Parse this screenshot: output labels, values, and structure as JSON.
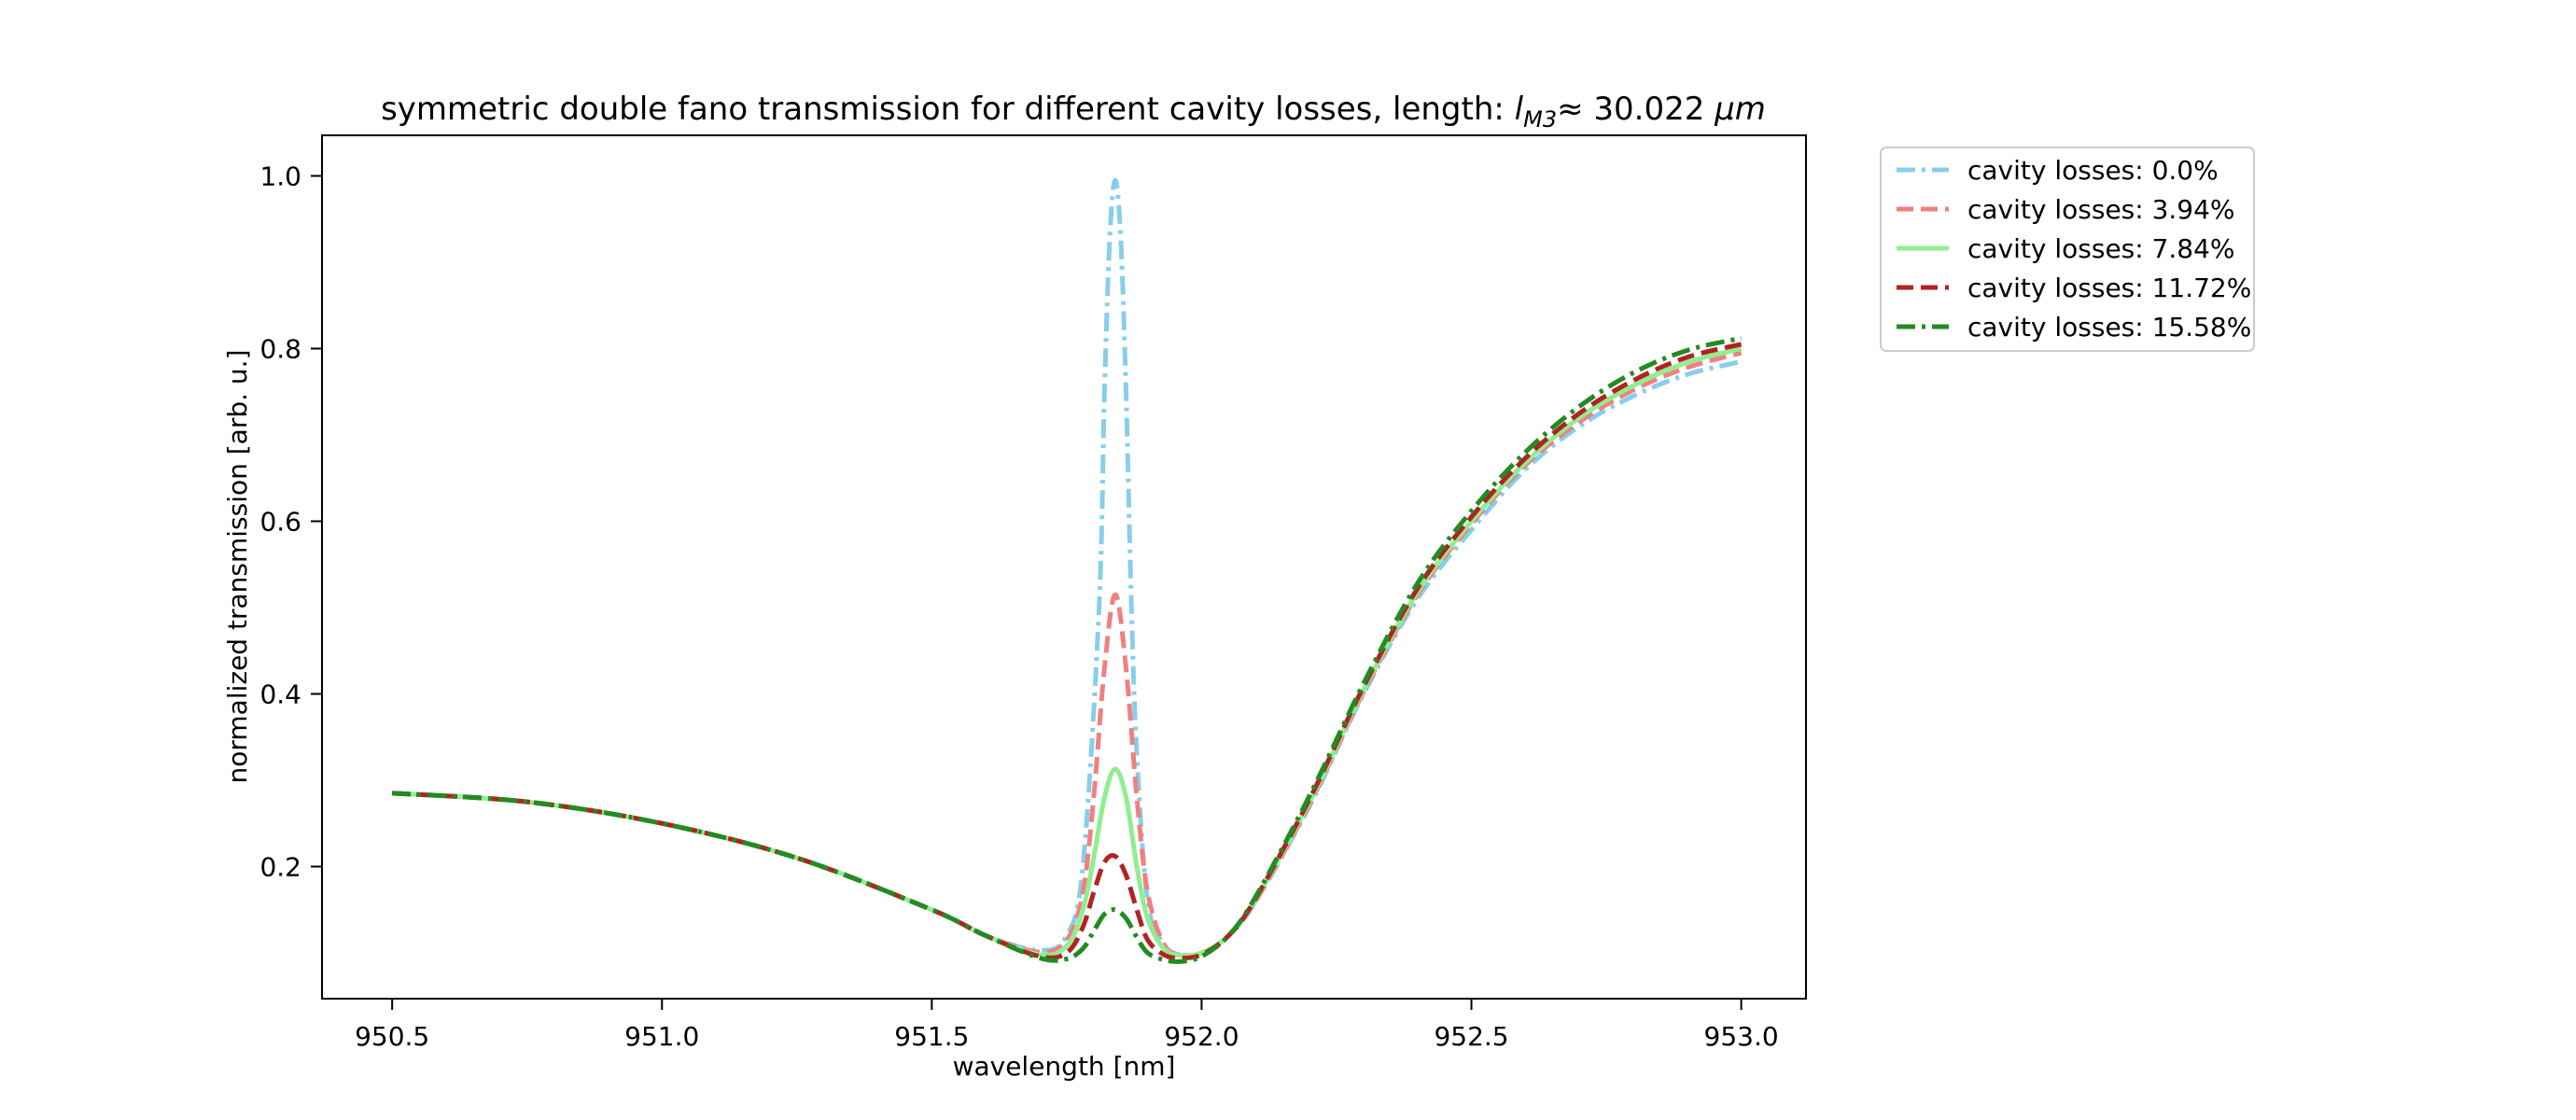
{
  "chart_data": {
    "type": "line",
    "title_prefix": "symmetric double fano transmission for different cavity losses, length: ",
    "title_symbol": "l",
    "title_subscript": "M3",
    "title_suffix": "≈  30.022 ",
    "title_unit": "μm",
    "xlabel": "wavelength [nm]",
    "ylabel": "normalized transmission [arb. u.]",
    "xlim": [
      950.37,
      953.12
    ],
    "ylim": [
      0.047,
      1.047
    ],
    "xticks": [
      950.5,
      951.0,
      951.5,
      952.0,
      952.5,
      953.0
    ],
    "xtick_labels": [
      "950.5",
      "951.0",
      "951.5",
      "952.0",
      "952.5",
      "953.0"
    ],
    "yticks": [
      0.2,
      0.4,
      0.6,
      0.8,
      1.0
    ],
    "ytick_labels": [
      "0.2",
      "0.4",
      "0.6",
      "0.8",
      "1.0"
    ],
    "grid": false,
    "legend_position": "outside upper right",
    "series": [
      {
        "name": "cavity losses: 0.0%",
        "color": "#87ceeb",
        "dash": "dashdot",
        "peak": 0.995,
        "near": 0.1,
        "far_right": 0.785,
        "left_x": [
          950.5,
          950.75,
          951.0,
          951.25,
          951.5,
          951.6,
          951.7,
          951.75,
          951.78,
          951.81,
          951.82,
          951.83,
          951.84
        ],
        "left_y": [
          0.285,
          0.275,
          0.25,
          0.21,
          0.15,
          0.12,
          0.103,
          0.12,
          0.2,
          0.5,
          0.75,
          0.93,
          0.995
        ],
        "right_x": [
          951.84,
          951.85,
          951.86,
          951.87,
          951.88,
          951.9,
          951.93,
          951.96,
          952.0,
          952.05,
          952.1,
          952.2,
          952.3,
          952.4,
          952.5,
          952.6,
          952.7,
          952.8,
          952.9,
          953.0
        ],
        "right_y": [
          0.995,
          0.93,
          0.75,
          0.5,
          0.33,
          0.16,
          0.11,
          0.098,
          0.1,
          0.12,
          0.16,
          0.27,
          0.4,
          0.51,
          0.59,
          0.66,
          0.71,
          0.745,
          0.77,
          0.785
        ]
      },
      {
        "name": "cavity losses: 3.94%",
        "color": "#f08080",
        "dash": "dashed",
        "peak": 0.515,
        "near": 0.098,
        "far_right": 0.795,
        "left_x": [
          950.5,
          950.75,
          951.0,
          951.25,
          951.5,
          951.6,
          951.7,
          951.75,
          951.78,
          951.8,
          951.82,
          951.84
        ],
        "left_y": [
          0.285,
          0.275,
          0.25,
          0.21,
          0.15,
          0.12,
          0.101,
          0.115,
          0.17,
          0.28,
          0.43,
          0.515
        ],
        "right_x": [
          951.84,
          951.86,
          951.88,
          951.9,
          951.93,
          951.96,
          952.0,
          952.05,
          952.1,
          952.2,
          952.3,
          952.4,
          952.5,
          952.6,
          952.7,
          952.8,
          952.9,
          953.0
        ],
        "right_y": [
          0.515,
          0.43,
          0.28,
          0.17,
          0.11,
          0.098,
          0.1,
          0.12,
          0.16,
          0.272,
          0.402,
          0.515,
          0.597,
          0.665,
          0.715,
          0.752,
          0.778,
          0.795
        ]
      },
      {
        "name": "cavity losses: 7.84%",
        "color": "#90ee90",
        "dash": "solid",
        "peak": 0.313,
        "near": 0.097,
        "far_right": 0.8,
        "left_x": [
          950.5,
          950.75,
          951.0,
          951.25,
          951.5,
          951.6,
          951.7,
          951.75,
          951.78,
          951.8,
          951.82,
          951.84
        ],
        "left_y": [
          0.285,
          0.275,
          0.25,
          0.21,
          0.15,
          0.12,
          0.098,
          0.108,
          0.15,
          0.21,
          0.28,
          0.313
        ],
        "right_x": [
          951.84,
          951.86,
          951.88,
          951.9,
          951.93,
          951.96,
          952.0,
          952.05,
          952.1,
          952.2,
          952.3,
          952.4,
          952.5,
          952.6,
          952.7,
          952.8,
          952.9,
          953.0
        ],
        "right_y": [
          0.313,
          0.28,
          0.2,
          0.14,
          0.105,
          0.097,
          0.1,
          0.12,
          0.162,
          0.275,
          0.405,
          0.518,
          0.6,
          0.668,
          0.72,
          0.757,
          0.784,
          0.8
        ]
      },
      {
        "name": "cavity losses: 11.72%",
        "color": "#b22222",
        "dash": "dashed",
        "peak": 0.212,
        "near": 0.094,
        "far_right": 0.805,
        "left_x": [
          950.5,
          950.75,
          951.0,
          951.25,
          951.5,
          951.6,
          951.7,
          951.75,
          951.78,
          951.8,
          951.82,
          951.84
        ],
        "left_y": [
          0.285,
          0.275,
          0.25,
          0.21,
          0.15,
          0.12,
          0.096,
          0.1,
          0.13,
          0.17,
          0.205,
          0.212
        ],
        "right_x": [
          951.84,
          951.86,
          951.88,
          951.9,
          951.93,
          951.96,
          952.0,
          952.05,
          952.1,
          952.2,
          952.3,
          952.4,
          952.5,
          952.6,
          952.7,
          952.8,
          952.9,
          953.0
        ],
        "right_y": [
          0.212,
          0.19,
          0.15,
          0.115,
          0.098,
          0.094,
          0.098,
          0.12,
          0.163,
          0.278,
          0.408,
          0.522,
          0.605,
          0.673,
          0.725,
          0.763,
          0.79,
          0.805
        ]
      },
      {
        "name": "cavity losses: 15.58%",
        "color": "#228b22",
        "dash": "dashdot",
        "peak": 0.15,
        "near": 0.092,
        "far_right": 0.812,
        "left_x": [
          950.5,
          950.75,
          951.0,
          951.25,
          951.5,
          951.6,
          951.7,
          951.75,
          951.78,
          951.8,
          951.82,
          951.84
        ],
        "left_y": [
          0.285,
          0.275,
          0.25,
          0.21,
          0.15,
          0.12,
          0.094,
          0.093,
          0.105,
          0.125,
          0.145,
          0.15
        ],
        "right_x": [
          951.84,
          951.86,
          951.88,
          951.9,
          951.93,
          951.96,
          952.0,
          952.05,
          952.1,
          952.2,
          952.3,
          952.4,
          952.5,
          952.6,
          952.7,
          952.8,
          952.9,
          953.0
        ],
        "right_y": [
          0.15,
          0.14,
          0.118,
          0.1,
          0.092,
          0.09,
          0.096,
          0.12,
          0.165,
          0.282,
          0.412,
          0.528,
          0.612,
          0.68,
          0.733,
          0.772,
          0.798,
          0.812
        ]
      }
    ]
  }
}
